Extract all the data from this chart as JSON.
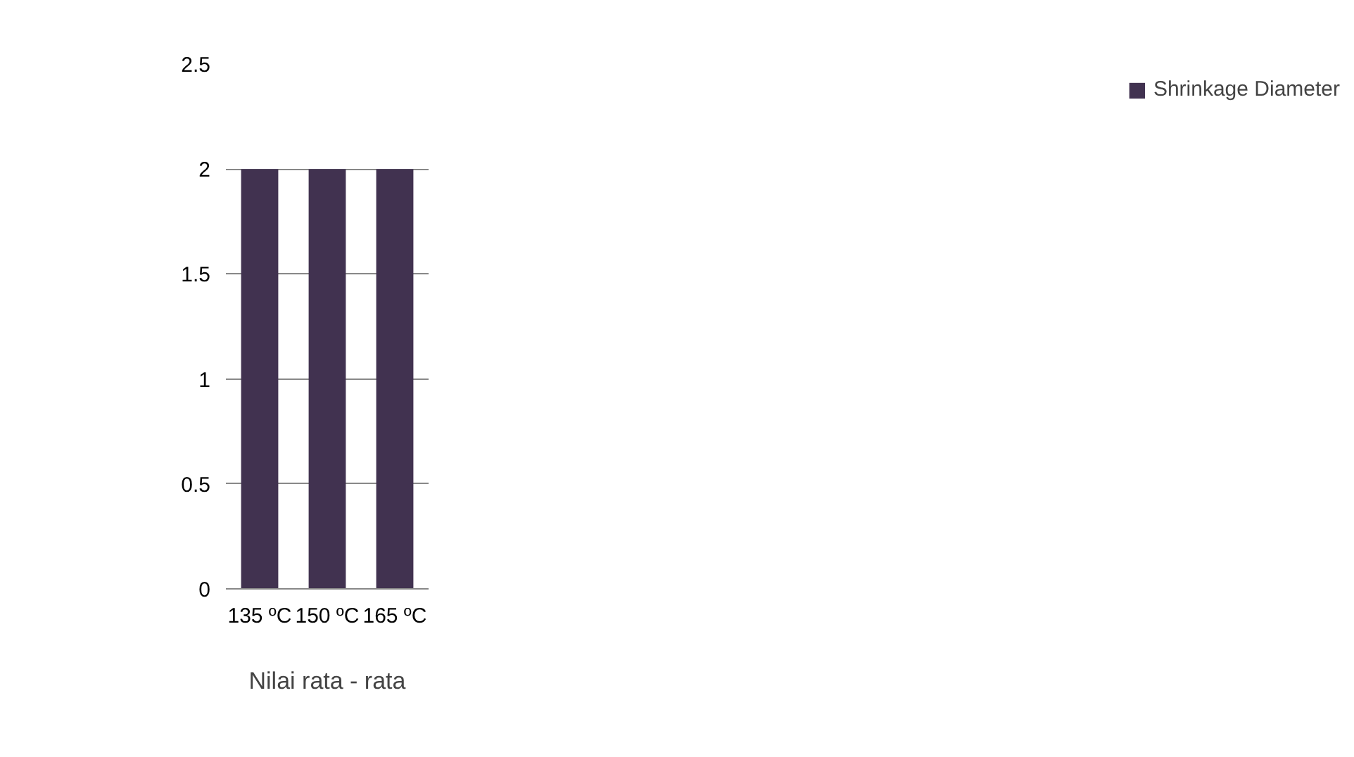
{
  "chart_data": {
    "type": "bar",
    "xlabel": "Nilai rata - rata",
    "categories": [
      "135 ºC",
      "150 ºC",
      "165 ºC"
    ],
    "series": [
      {
        "name": "Shrinkage Diameter",
        "color": "#413250",
        "values": [
          2,
          2,
          2
        ]
      }
    ],
    "ylim": [
      0,
      2.5
    ],
    "yticks": [
      0,
      0.5,
      1,
      1.5,
      2,
      2.5
    ],
    "grid": "y",
    "legend": "right"
  }
}
